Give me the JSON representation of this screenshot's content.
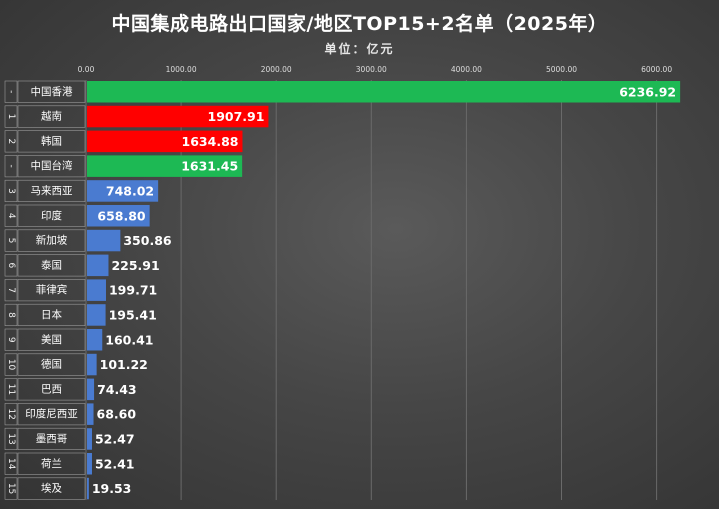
{
  "chart_data": {
    "type": "bar",
    "orientation": "horizontal",
    "title": "中国集成电路出口国家/地区TOP15+2名单（2025年）",
    "subtitle": "单位：亿元",
    "xlim": [
      0,
      6200
    ],
    "x_ticks": [
      "0.00",
      "1000.00",
      "2000.00",
      "3000.00",
      "4000.00",
      "5000.00",
      "6000.00"
    ],
    "x_tick_values": [
      0,
      1000,
      2000,
      3000,
      4000,
      5000,
      6000
    ],
    "grid": true,
    "legend": "none",
    "ranks": [
      "-",
      "1",
      "2",
      "-",
      "3",
      "4",
      "5",
      "6",
      "7",
      "8",
      "9",
      "10",
      "11",
      "12",
      "13",
      "14",
      "15"
    ],
    "categories": [
      "中国香港",
      "越南",
      "韩国",
      "中国台湾",
      "马来西亚",
      "印度",
      "新加坡",
      "泰国",
      "菲律宾",
      "日本",
      "美国",
      "德国",
      "巴西",
      "印度尼西亚",
      "墨西哥",
      "荷兰",
      "埃及"
    ],
    "values": [
      6236.92,
      1907.91,
      1634.88,
      1631.45,
      748.02,
      658.8,
      350.86,
      225.91,
      199.71,
      195.41,
      160.41,
      101.22,
      74.43,
      68.6,
      52.47,
      52.41,
      19.53
    ],
    "value_labels": [
      "6236.92",
      "1907.91",
      "1634.88",
      "1631.45",
      "748.02",
      "658.80",
      "350.86",
      "225.91",
      "199.71",
      "195.41",
      "160.41",
      "101.22",
      "74.43",
      "68.60",
      "52.47",
      "52.41",
      "19.53"
    ],
    "bar_colors": [
      "#1db954",
      "#ff0000",
      "#ff0000",
      "#1db954",
      "#4a7bd0",
      "#4a7bd0",
      "#4a7bd0",
      "#4a7bd0",
      "#4a7bd0",
      "#4a7bd0",
      "#4a7bd0",
      "#4a7bd0",
      "#4a7bd0",
      "#4a7bd0",
      "#4a7bd0",
      "#4a7bd0",
      "#4a7bd0"
    ]
  },
  "colors": {
    "green": "#1db954",
    "red": "#ff0000",
    "blue": "#4a7bd0",
    "label_cell": "#ffffff",
    "grid": "#6a6a6a"
  }
}
